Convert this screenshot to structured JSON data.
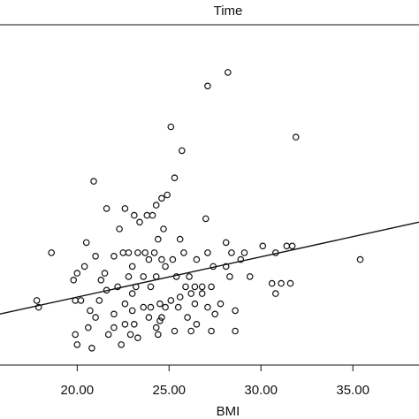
{
  "chart_data": {
    "type": "scatter",
    "title": "Time",
    "xlabel": "BMI",
    "ylabel": "",
    "xlim": [
      15.8,
      38.6
    ],
    "ylim": [
      0,
      1
    ],
    "xticks": [
      20.0,
      25.0,
      30.0,
      35.0
    ],
    "xtick_labels": [
      "20.00",
      "25.00",
      "30.00",
      "35.00"
    ],
    "grid": false,
    "legend": "none",
    "colors": {
      "marker": "#111111",
      "line": "#111111",
      "axis": "#111111"
    },
    "fit_line": {
      "x": [
        15.8,
        38.6
      ],
      "y": [
        0.15,
        0.42
      ]
    },
    "points": [
      {
        "x": 28.2,
        "y": 0.86
      },
      {
        "x": 27.1,
        "y": 0.82
      },
      {
        "x": 31.9,
        "y": 0.67
      },
      {
        "x": 25.1,
        "y": 0.7
      },
      {
        "x": 25.7,
        "y": 0.63
      },
      {
        "x": 25.3,
        "y": 0.55
      },
      {
        "x": 20.9,
        "y": 0.54
      },
      {
        "x": 24.9,
        "y": 0.5
      },
      {
        "x": 24.6,
        "y": 0.49
      },
      {
        "x": 24.3,
        "y": 0.47
      },
      {
        "x": 22.6,
        "y": 0.46
      },
      {
        "x": 21.6,
        "y": 0.46
      },
      {
        "x": 23.1,
        "y": 0.44
      },
      {
        "x": 23.8,
        "y": 0.44
      },
      {
        "x": 24.1,
        "y": 0.44
      },
      {
        "x": 27.0,
        "y": 0.43
      },
      {
        "x": 23.4,
        "y": 0.42
      },
      {
        "x": 22.3,
        "y": 0.4
      },
      {
        "x": 24.7,
        "y": 0.4
      },
      {
        "x": 24.4,
        "y": 0.37
      },
      {
        "x": 25.6,
        "y": 0.37
      },
      {
        "x": 20.5,
        "y": 0.36
      },
      {
        "x": 28.1,
        "y": 0.36
      },
      {
        "x": 30.1,
        "y": 0.35
      },
      {
        "x": 31.7,
        "y": 0.35
      },
      {
        "x": 31.4,
        "y": 0.35
      },
      {
        "x": 18.6,
        "y": 0.33
      },
      {
        "x": 22.5,
        "y": 0.33
      },
      {
        "x": 22.8,
        "y": 0.33
      },
      {
        "x": 23.3,
        "y": 0.33
      },
      {
        "x": 23.7,
        "y": 0.33
      },
      {
        "x": 24.2,
        "y": 0.33
      },
      {
        "x": 25.8,
        "y": 0.33
      },
      {
        "x": 27.1,
        "y": 0.33
      },
      {
        "x": 28.4,
        "y": 0.33
      },
      {
        "x": 29.1,
        "y": 0.33
      },
      {
        "x": 30.8,
        "y": 0.33
      },
      {
        "x": 21.0,
        "y": 0.32
      },
      {
        "x": 22.0,
        "y": 0.32
      },
      {
        "x": 23.9,
        "y": 0.31
      },
      {
        "x": 24.6,
        "y": 0.31
      },
      {
        "x": 25.2,
        "y": 0.31
      },
      {
        "x": 26.5,
        "y": 0.31
      },
      {
        "x": 28.9,
        "y": 0.31
      },
      {
        "x": 35.4,
        "y": 0.31
      },
      {
        "x": 20.4,
        "y": 0.29
      },
      {
        "x": 23.0,
        "y": 0.29
      },
      {
        "x": 24.8,
        "y": 0.29
      },
      {
        "x": 27.4,
        "y": 0.29
      },
      {
        "x": 28.1,
        "y": 0.29
      },
      {
        "x": 20.0,
        "y": 0.27
      },
      {
        "x": 21.5,
        "y": 0.27
      },
      {
        "x": 22.8,
        "y": 0.26
      },
      {
        "x": 23.6,
        "y": 0.26
      },
      {
        "x": 24.3,
        "y": 0.26
      },
      {
        "x": 25.4,
        "y": 0.26
      },
      {
        "x": 26.1,
        "y": 0.26
      },
      {
        "x": 28.3,
        "y": 0.26
      },
      {
        "x": 29.4,
        "y": 0.26
      },
      {
        "x": 21.3,
        "y": 0.25
      },
      {
        "x": 19.8,
        "y": 0.25
      },
      {
        "x": 30.6,
        "y": 0.24
      },
      {
        "x": 31.1,
        "y": 0.24
      },
      {
        "x": 31.6,
        "y": 0.24
      },
      {
        "x": 22.2,
        "y": 0.23
      },
      {
        "x": 23.2,
        "y": 0.23
      },
      {
        "x": 24.0,
        "y": 0.23
      },
      {
        "x": 25.9,
        "y": 0.23
      },
      {
        "x": 26.4,
        "y": 0.23
      },
      {
        "x": 26.8,
        "y": 0.23
      },
      {
        "x": 27.3,
        "y": 0.23
      },
      {
        "x": 21.6,
        "y": 0.22
      },
      {
        "x": 30.8,
        "y": 0.21
      },
      {
        "x": 23.0,
        "y": 0.21
      },
      {
        "x": 25.6,
        "y": 0.2
      },
      {
        "x": 26.2,
        "y": 0.21
      },
      {
        "x": 26.8,
        "y": 0.21
      },
      {
        "x": 17.8,
        "y": 0.19
      },
      {
        "x": 19.9,
        "y": 0.19
      },
      {
        "x": 20.2,
        "y": 0.19
      },
      {
        "x": 21.2,
        "y": 0.19
      },
      {
        "x": 22.6,
        "y": 0.18
      },
      {
        "x": 24.5,
        "y": 0.18
      },
      {
        "x": 25.1,
        "y": 0.19
      },
      {
        "x": 26.4,
        "y": 0.18
      },
      {
        "x": 27.8,
        "y": 0.18
      },
      {
        "x": 17.9,
        "y": 0.17
      },
      {
        "x": 20.7,
        "y": 0.16
      },
      {
        "x": 23.6,
        "y": 0.17
      },
      {
        "x": 24.0,
        "y": 0.17
      },
      {
        "x": 24.8,
        "y": 0.17
      },
      {
        "x": 25.5,
        "y": 0.17
      },
      {
        "x": 27.1,
        "y": 0.17
      },
      {
        "x": 28.6,
        "y": 0.16
      },
      {
        "x": 23.0,
        "y": 0.16
      },
      {
        "x": 22.0,
        "y": 0.15
      },
      {
        "x": 21.0,
        "y": 0.14
      },
      {
        "x": 23.9,
        "y": 0.14
      },
      {
        "x": 26.0,
        "y": 0.14
      },
      {
        "x": 27.5,
        "y": 0.15
      },
      {
        "x": 24.5,
        "y": 0.13
      },
      {
        "x": 23.1,
        "y": 0.12
      },
      {
        "x": 22.6,
        "y": 0.12
      },
      {
        "x": 26.5,
        "y": 0.12
      },
      {
        "x": 24.3,
        "y": 0.11
      },
      {
        "x": 22.0,
        "y": 0.11
      },
      {
        "x": 20.6,
        "y": 0.11
      },
      {
        "x": 19.9,
        "y": 0.09
      },
      {
        "x": 21.7,
        "y": 0.09
      },
      {
        "x": 22.9,
        "y": 0.09
      },
      {
        "x": 24.4,
        "y": 0.09
      },
      {
        "x": 26.2,
        "y": 0.1
      },
      {
        "x": 27.3,
        "y": 0.1
      },
      {
        "x": 28.6,
        "y": 0.1
      },
      {
        "x": 24.6,
        "y": 0.14
      },
      {
        "x": 25.3,
        "y": 0.1
      },
      {
        "x": 23.3,
        "y": 0.08
      },
      {
        "x": 20.0,
        "y": 0.06
      },
      {
        "x": 20.8,
        "y": 0.05
      },
      {
        "x": 22.4,
        "y": 0.06
      }
    ]
  }
}
